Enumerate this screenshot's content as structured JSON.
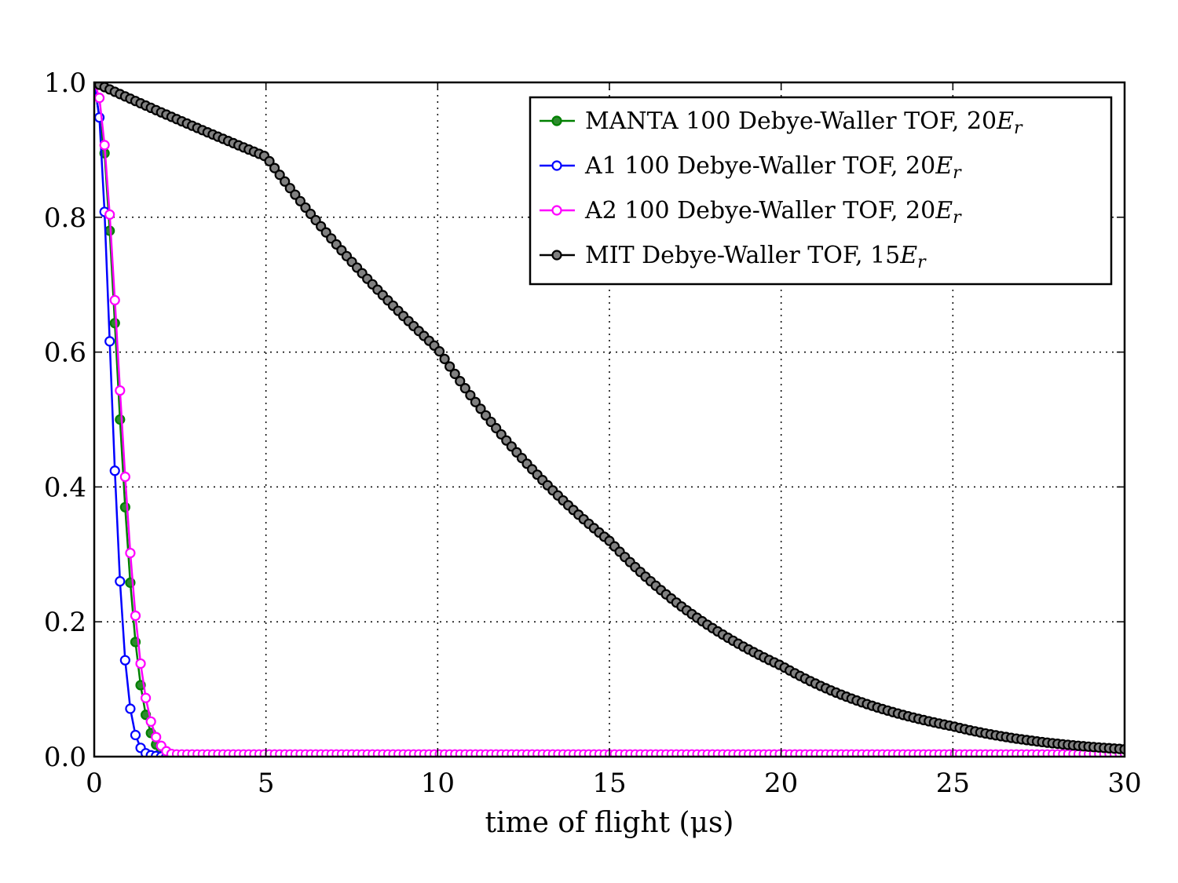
{
  "chart_data": {
    "type": "line",
    "xlabel": "time of flight (μs)",
    "ylabel": "",
    "xlim": [
      0,
      30
    ],
    "ylim": [
      0,
      1
    ],
    "xticks": [
      0,
      5,
      10,
      15,
      20,
      25,
      30
    ],
    "yticks": [
      0.0,
      0.2,
      0.4,
      0.6,
      0.8,
      1.0
    ],
    "xtick_labels": [
      "0",
      "5",
      "10",
      "15",
      "20",
      "25",
      "30"
    ],
    "ytick_labels": [
      "0.0",
      "0.2",
      "0.4",
      "0.6",
      "0.8",
      "1.0"
    ],
    "grid": true,
    "legend_position": "top-right",
    "series": [
      {
        "name": "MANTA 100 Debye-Waller TOF, 20",
        "name_math": "E_r",
        "color": "#008000",
        "marker_fill": "#2e8b2e",
        "x": [
          0.0,
          0.3,
          0.45,
          0.6,
          0.75,
          0.9,
          1.05,
          1.2,
          1.35,
          1.5,
          1.65,
          1.8,
          1.95,
          2.1,
          2.25,
          2.4,
          2.55
        ],
        "y": [
          1.0,
          0.895,
          0.78,
          0.643,
          0.5,
          0.37,
          0.258,
          0.17,
          0.106,
          0.062,
          0.035,
          0.018,
          0.009,
          0.004,
          0.002,
          0.001,
          0.0
        ]
      },
      {
        "name": "A1 100 Debye-Waller TOF, 20",
        "name_math": "E_r",
        "color": "#0000ff",
        "marker_fill": "#ffffff",
        "x": [
          0.0,
          0.15,
          0.3,
          0.45,
          0.6,
          0.75,
          0.9,
          1.05,
          1.2,
          1.35,
          1.5,
          1.65,
          1.8,
          1.95,
          2.1
        ],
        "y": [
          1.0,
          0.948,
          0.808,
          0.616,
          0.424,
          0.26,
          0.143,
          0.071,
          0.032,
          0.013,
          0.005,
          0.002,
          0.001,
          0.0,
          0.0
        ]
      },
      {
        "name": "A2 100 Debye-Waller TOF, 20",
        "name_math": "E_r",
        "color": "#ff00ff",
        "marker_fill": "#ffffff",
        "x": [
          0.0,
          0.15,
          0.3,
          0.45,
          0.6,
          0.75,
          0.9,
          1.05,
          1.2,
          1.35,
          1.5,
          1.65,
          1.8,
          1.95,
          2.1,
          2.25
        ],
        "y": [
          1.0,
          0.977,
          0.907,
          0.804,
          0.677,
          0.543,
          0.415,
          0.302,
          0.209,
          0.138,
          0.087,
          0.052,
          0.029,
          0.016,
          0.008,
          0.004
        ],
        "tail_y": 0.004,
        "tail_x_end": 30
      },
      {
        "name": "MIT Debye-Waller TOF, 15",
        "name_math": "E_r",
        "color": "#000000",
        "marker_fill": "#808080",
        "sigma_us": 15.0,
        "floor": 0.0,
        "x_start": 0,
        "x_end": 30,
        "x_step": 0.15,
        "sample_points": [
          [
            0,
            1.0
          ],
          [
            5,
            0.89
          ],
          [
            10,
            0.605
          ],
          [
            15,
            0.32
          ],
          [
            20,
            0.135
          ],
          [
            25,
            0.045
          ],
          [
            30,
            0.011
          ]
        ]
      }
    ]
  }
}
